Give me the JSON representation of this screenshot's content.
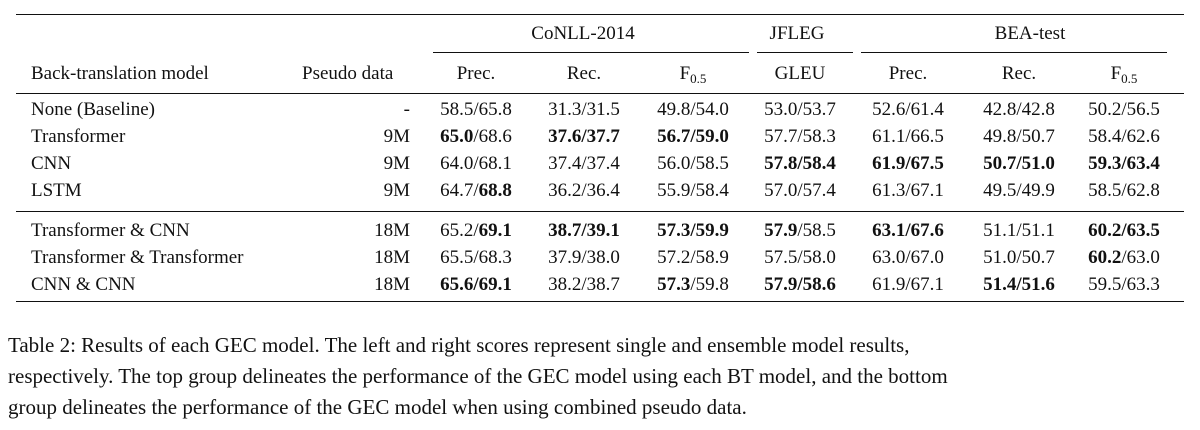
{
  "table": {
    "groups": [
      {
        "label": "CoNLL-2014"
      },
      {
        "label": "JFLEG"
      },
      {
        "label": "BEA-test"
      }
    ],
    "headers": {
      "model": "Back-translation model",
      "pseudo": "Pseudo data",
      "conll_prec": "Prec.",
      "conll_rec": "Rec.",
      "conll_f_base": "F",
      "conll_f_sub": "0.5",
      "jfleg_gleu": "GLEU",
      "bea_prec": "Prec.",
      "bea_rec": "Rec.",
      "bea_f_base": "F",
      "bea_f_sub": "0.5"
    },
    "rows": [
      {
        "model": "None (Baseline)",
        "pseudo": "-",
        "cells": [
          [
            "58.5/65.8",
            ""
          ],
          [
            "31.3/31.5",
            ""
          ],
          [
            "49.8/54.0",
            ""
          ],
          [
            "53.0/53.7",
            ""
          ],
          [
            "52.6/61.4",
            ""
          ],
          [
            "42.8/42.8",
            ""
          ],
          [
            "50.2/56.5",
            ""
          ]
        ]
      },
      {
        "model": "Transformer",
        "pseudo": "9M",
        "cells": [
          [
            "65.0",
            "/68.6"
          ],
          [
            "37.6/37.7",
            ""
          ],
          [
            "56.7/59.0",
            ""
          ],
          [
            "57.7/58.3",
            ""
          ],
          [
            "61.1/66.5",
            ""
          ],
          [
            "49.8/50.7",
            ""
          ],
          [
            "58.4/62.6",
            ""
          ]
        ],
        "bold": [
          [
            true,
            false
          ],
          [
            true,
            false
          ],
          [
            true,
            false
          ],
          [
            false,
            false
          ],
          [
            false,
            false
          ],
          [
            false,
            false
          ],
          [
            false,
            false
          ]
        ]
      },
      {
        "model": "CNN",
        "pseudo": "9M",
        "cells": [
          [
            "64.0/68.1",
            ""
          ],
          [
            "37.4/37.4",
            ""
          ],
          [
            "56.0/58.5",
            ""
          ],
          [
            "57.8/58.4",
            ""
          ],
          [
            "61.9/67.5",
            ""
          ],
          [
            "50.7/51.0",
            ""
          ],
          [
            "59.3/63.4",
            ""
          ]
        ],
        "bold": [
          [
            false,
            false
          ],
          [
            false,
            false
          ],
          [
            false,
            false
          ],
          [
            true,
            false
          ],
          [
            true,
            false
          ],
          [
            true,
            false
          ],
          [
            true,
            false
          ]
        ]
      },
      {
        "model": "LSTM",
        "pseudo": "9M",
        "cells": [
          [
            "64.7/",
            "68.8"
          ],
          [
            "36.2/36.4",
            ""
          ],
          [
            "55.9/58.4",
            ""
          ],
          [
            "57.0/57.4",
            ""
          ],
          [
            "61.3/67.1",
            ""
          ],
          [
            "49.5/49.9",
            ""
          ],
          [
            "58.5/62.8",
            ""
          ]
        ],
        "bold": [
          [
            false,
            true
          ],
          [
            false,
            false
          ],
          [
            false,
            false
          ],
          [
            false,
            false
          ],
          [
            false,
            false
          ],
          [
            false,
            false
          ],
          [
            false,
            false
          ]
        ]
      },
      {
        "model": "Transformer & CNN",
        "pseudo": "18M",
        "cells": [
          [
            "65.2/",
            "69.1"
          ],
          [
            "38.7/39.1",
            ""
          ],
          [
            "57.3/59.9",
            ""
          ],
          [
            "57.9",
            "/58.5"
          ],
          [
            "63.1/67.6",
            ""
          ],
          [
            "51.1/51.1",
            ""
          ],
          [
            "60.2/63.5",
            ""
          ]
        ],
        "bold": [
          [
            false,
            true
          ],
          [
            true,
            false
          ],
          [
            true,
            false
          ],
          [
            true,
            false
          ],
          [
            true,
            false
          ],
          [
            false,
            false
          ],
          [
            true,
            false
          ]
        ]
      },
      {
        "model": "Transformer & Transformer",
        "pseudo": "18M",
        "cells": [
          [
            "65.5/68.3",
            ""
          ],
          [
            "37.9/38.0",
            ""
          ],
          [
            "57.2/58.9",
            ""
          ],
          [
            "57.5/58.0",
            ""
          ],
          [
            "63.0/67.0",
            ""
          ],
          [
            "51.0/50.7",
            ""
          ],
          [
            "60.2",
            "/63.0"
          ]
        ],
        "bold": [
          [
            false,
            false
          ],
          [
            false,
            false
          ],
          [
            false,
            false
          ],
          [
            false,
            false
          ],
          [
            false,
            false
          ],
          [
            false,
            false
          ],
          [
            true,
            false
          ]
        ]
      },
      {
        "model": "CNN & CNN",
        "pseudo": "18M",
        "cells": [
          [
            "65.6/69.1",
            ""
          ],
          [
            "38.2/38.7",
            ""
          ],
          [
            "57.3",
            "/59.8"
          ],
          [
            "57.9/58.6",
            ""
          ],
          [
            "61.9/67.1",
            ""
          ],
          [
            "51.4/51.6",
            ""
          ],
          [
            "59.5/63.3",
            ""
          ]
        ],
        "bold": [
          [
            true,
            false
          ],
          [
            false,
            false
          ],
          [
            true,
            false
          ],
          [
            true,
            false
          ],
          [
            false,
            false
          ],
          [
            true,
            false
          ],
          [
            false,
            false
          ]
        ]
      }
    ]
  },
  "caption": {
    "line1": "Table 2:  Results of each GEC model.  The left and right scores represent single and ensemble model results,",
    "line2": "respectively. The top group delineates the performance of the GEC model using each BT model, and the bottom",
    "line3": "group delineates the performance of the GEC model when using combined pseudo data."
  }
}
